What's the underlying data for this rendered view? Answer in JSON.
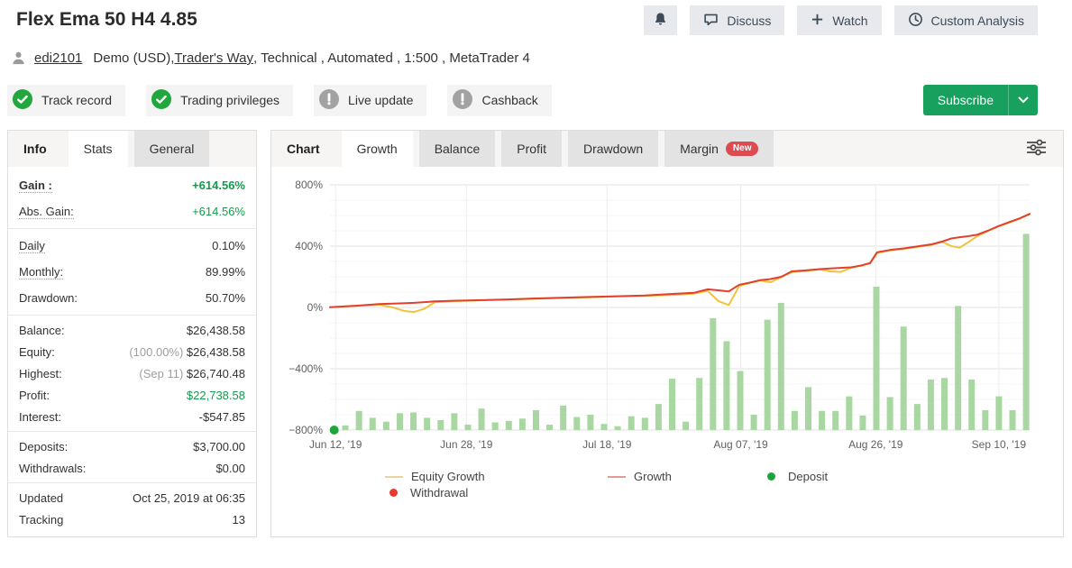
{
  "header": {
    "title": "Flex Ema 50 H4 4.85",
    "actions": {
      "discuss": "Discuss",
      "watch": "Watch",
      "custom_analysis": "Custom Analysis"
    }
  },
  "user": {
    "username": "edi2101",
    "account": "Demo (USD), ",
    "broker": "Trader's Way",
    "attributes": " , Technical , Automated , 1:500 , MetaTrader 4"
  },
  "badges": [
    {
      "label": "Track record",
      "status": "verified"
    },
    {
      "label": "Trading privileges",
      "status": "verified"
    },
    {
      "label": "Live update",
      "status": "warning"
    },
    {
      "label": "Cashback",
      "status": "warning"
    }
  ],
  "subscribe": {
    "label": "Subscribe"
  },
  "stats_panel": {
    "tabs": [
      {
        "label": "Info",
        "style": "title"
      },
      {
        "label": "Stats",
        "style": "active"
      },
      {
        "label": "General",
        "style": "grey"
      }
    ],
    "groups": [
      {
        "roomy": true,
        "rows": [
          {
            "label": "Gain :",
            "value": "+614.56%",
            "value_class": "green-bold",
            "dotted": true,
            "bold": true
          },
          {
            "label": "Abs. Gain:",
            "value": "+614.56%",
            "value_class": "green",
            "dotted": true
          }
        ]
      },
      {
        "roomy": true,
        "rows": [
          {
            "label": "Daily",
            "value": "0.10%",
            "dotted": true
          },
          {
            "label": "Monthly:",
            "value": "89.99%",
            "dotted": true
          },
          {
            "label": "Drawdown:",
            "value": "50.70%"
          }
        ]
      },
      {
        "rows": [
          {
            "label": "Balance:",
            "value": "$26,438.58"
          },
          {
            "label": "Equity:",
            "muted_prefix": "(100.00%) ",
            "value": "$26,438.58"
          },
          {
            "label": "Highest:",
            "muted_prefix": "(Sep 11) ",
            "value": "$26,740.48"
          },
          {
            "label": "Profit:",
            "value": "$22,738.58",
            "value_class": "green"
          },
          {
            "label": "Interest:",
            "value": "-$547.85"
          }
        ]
      },
      {
        "rows": [
          {
            "label": "Deposits:",
            "value": "$3,700.00"
          },
          {
            "label": "Withdrawals:",
            "value": "$0.00"
          }
        ]
      },
      {
        "rows": [
          {
            "label": "Updated",
            "value": "Oct 25, 2019 at 06:35"
          },
          {
            "label": "Tracking",
            "value": "13"
          }
        ]
      }
    ]
  },
  "chart_panel": {
    "tabs": [
      {
        "label": "Chart",
        "style": "title"
      },
      {
        "label": "Growth",
        "style": "active"
      },
      {
        "label": "Balance",
        "style": "grey"
      },
      {
        "label": "Profit",
        "style": "grey"
      },
      {
        "label": "Drawdown",
        "style": "grey"
      },
      {
        "label": "Margin",
        "style": "grey",
        "badge": "New"
      }
    ]
  },
  "chart_data": {
    "type": "line",
    "title": "Growth",
    "ylabel": "%",
    "ylim": [
      -800,
      800
    ],
    "y_ticks": [
      800,
      400,
      0,
      -400,
      -800
    ],
    "y_tick_suffix": "%",
    "y_minor_step": 100,
    "grid": true,
    "x_ticks": [
      {
        "label": "Jun 12, '19",
        "f": 0.008
      },
      {
        "label": "Jun 28, '19",
        "f": 0.195
      },
      {
        "label": "Jul 18, '19",
        "f": 0.396
      },
      {
        "label": "Aug 07, '19",
        "f": 0.587
      },
      {
        "label": "Aug 26, '19",
        "f": 0.78
      },
      {
        "label": "Sep 10, '19",
        "f": 0.956
      }
    ],
    "series": [
      {
        "name": "Equity Growth",
        "color": "#f0c33c",
        "points": [
          [
            0.0,
            2
          ],
          [
            0.04,
            12
          ],
          [
            0.07,
            18
          ],
          [
            0.09,
            0
          ],
          [
            0.105,
            -22
          ],
          [
            0.12,
            -30
          ],
          [
            0.135,
            -8
          ],
          [
            0.15,
            35
          ],
          [
            0.18,
            42
          ],
          [
            0.21,
            45
          ],
          [
            0.25,
            52
          ],
          [
            0.29,
            56
          ],
          [
            0.33,
            62
          ],
          [
            0.37,
            66
          ],
          [
            0.41,
            72
          ],
          [
            0.45,
            76
          ],
          [
            0.49,
            82
          ],
          [
            0.52,
            90
          ],
          [
            0.54,
            108
          ],
          [
            0.555,
            42
          ],
          [
            0.57,
            15
          ],
          [
            0.585,
            140
          ],
          [
            0.6,
            160
          ],
          [
            0.615,
            175
          ],
          [
            0.63,
            165
          ],
          [
            0.645,
            198
          ],
          [
            0.66,
            230
          ],
          [
            0.68,
            238
          ],
          [
            0.7,
            248
          ],
          [
            0.715,
            235
          ],
          [
            0.73,
            232
          ],
          [
            0.745,
            260
          ],
          [
            0.76,
            272
          ],
          [
            0.772,
            288
          ],
          [
            0.782,
            355
          ],
          [
            0.8,
            372
          ],
          [
            0.82,
            382
          ],
          [
            0.84,
            395
          ],
          [
            0.86,
            408
          ],
          [
            0.875,
            428
          ],
          [
            0.888,
            400
          ],
          [
            0.9,
            390
          ],
          [
            0.912,
            425
          ],
          [
            0.925,
            465
          ],
          [
            0.94,
            498
          ],
          [
            0.955,
            528
          ],
          [
            0.97,
            552
          ],
          [
            0.985,
            578
          ],
          [
            1.0,
            610
          ]
        ]
      },
      {
        "name": "Growth",
        "color": "#e2402d",
        "points": [
          [
            0.0,
            2
          ],
          [
            0.04,
            12
          ],
          [
            0.07,
            22
          ],
          [
            0.09,
            25
          ],
          [
            0.105,
            27
          ],
          [
            0.12,
            30
          ],
          [
            0.135,
            35
          ],
          [
            0.15,
            40
          ],
          [
            0.18,
            44
          ],
          [
            0.21,
            47
          ],
          [
            0.25,
            52
          ],
          [
            0.29,
            58
          ],
          [
            0.33,
            63
          ],
          [
            0.37,
            68
          ],
          [
            0.41,
            73
          ],
          [
            0.45,
            78
          ],
          [
            0.49,
            88
          ],
          [
            0.52,
            95
          ],
          [
            0.54,
            118
          ],
          [
            0.555,
            112
          ],
          [
            0.57,
            105
          ],
          [
            0.585,
            148
          ],
          [
            0.6,
            162
          ],
          [
            0.615,
            178
          ],
          [
            0.63,
            185
          ],
          [
            0.645,
            200
          ],
          [
            0.66,
            235
          ],
          [
            0.68,
            242
          ],
          [
            0.7,
            250
          ],
          [
            0.715,
            255
          ],
          [
            0.73,
            258
          ],
          [
            0.745,
            262
          ],
          [
            0.76,
            275
          ],
          [
            0.772,
            290
          ],
          [
            0.782,
            360
          ],
          [
            0.8,
            375
          ],
          [
            0.82,
            385
          ],
          [
            0.84,
            398
          ],
          [
            0.86,
            412
          ],
          [
            0.875,
            430
          ],
          [
            0.888,
            450
          ],
          [
            0.9,
            458
          ],
          [
            0.912,
            465
          ],
          [
            0.925,
            475
          ],
          [
            0.94,
            500
          ],
          [
            0.955,
            530
          ],
          [
            0.97,
            555
          ],
          [
            0.985,
            580
          ],
          [
            1.0,
            610
          ]
        ]
      }
    ],
    "bars": {
      "name": "activity-bars",
      "color": "#a9d7a2",
      "baseline": -800,
      "f_start": 0.022,
      "f_end": 0.995,
      "heights": [
        30,
        125,
        80,
        55,
        110,
        115,
        80,
        65,
        110,
        35,
        140,
        50,
        60,
        75,
        130,
        35,
        160,
        85,
        100,
        40,
        25,
        90,
        80,
        170,
        335,
        55,
        340,
        730,
        580,
        385,
        100,
        720,
        830,
        125,
        280,
        125,
        125,
        220,
        95,
        935,
        215,
        675,
        170,
        330,
        340,
        810,
        330,
        130,
        220,
        130,
        1280
      ]
    },
    "markers": [
      {
        "name": "Deposit",
        "color": "#1ca53c",
        "f": 0.006,
        "value": -800
      }
    ],
    "legend": [
      {
        "label": "Equity Growth",
        "type": "line",
        "color": "#e7d5a0"
      },
      {
        "label": "Growth",
        "type": "line",
        "color": "#e29a96"
      },
      {
        "label": "Deposit",
        "type": "dot",
        "color": "#1ca53c"
      },
      {
        "label": "Withdrawal",
        "type": "dot",
        "color": "#e8392e"
      }
    ],
    "legend_position": "bottom"
  },
  "colors": {
    "accent_green": "#149b4c",
    "subscribe_green": "#17a05e",
    "badge_verified_green": "#21a73d",
    "badge_warning_grey": "#a2a2a2",
    "new_badge_red": "#dd4a50",
    "equity_line": "#f0c33c",
    "growth_line": "#e2402d",
    "bars_green": "#a9d7a2",
    "deposit_dot_green": "#1ca53c",
    "withdrawal_dot_red": "#e8392e"
  }
}
